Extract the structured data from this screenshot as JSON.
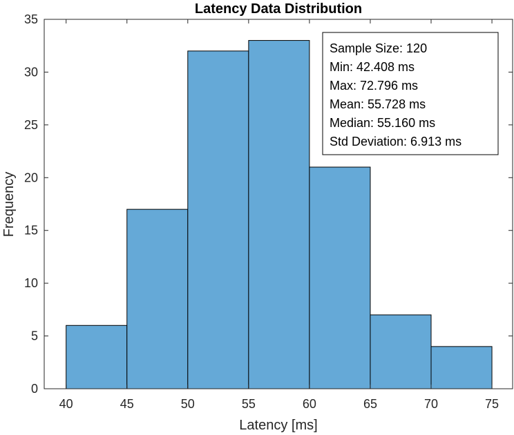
{
  "chart_data": {
    "type": "bar",
    "title": "Latency Data Distribution",
    "xlabel": "Latency [ms]",
    "ylabel": "Frequency",
    "bin_edges": [
      40,
      45,
      50,
      55,
      60,
      65,
      70,
      75
    ],
    "values": [
      6,
      17,
      32,
      33,
      21,
      7,
      4
    ],
    "xlim": [
      38.2,
      76.7
    ],
    "ylim": [
      0,
      35
    ],
    "xticks": [
      40,
      45,
      50,
      55,
      60,
      65,
      70,
      75
    ],
    "yticks": [
      0,
      5,
      10,
      15,
      20,
      25,
      30,
      35
    ],
    "bar_color": "#65a9d7",
    "edge_color": "#000000",
    "grid": false,
    "annotation_lines": [
      "Sample Size: 120",
      "Min: 42.408 ms",
      "Max: 72.796 ms",
      "Mean: 55.728 ms",
      "Median: 55.160 ms",
      "Std Deviation: 6.913 ms"
    ],
    "annotation_position": "top-right"
  }
}
